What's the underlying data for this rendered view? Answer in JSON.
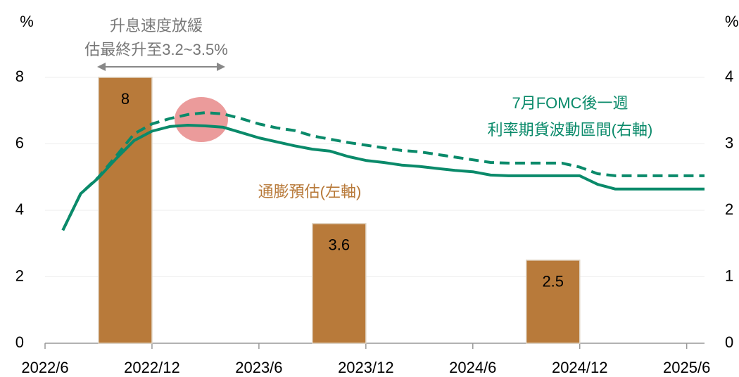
{
  "chart_data": {
    "type": "bar_line",
    "y_label": "%",
    "y2_label": "%",
    "xlim": [
      "2022/6",
      "2025/7"
    ],
    "xticks": [
      "2022/6",
      "2022/12",
      "2023/6",
      "2023/12",
      "2024/6",
      "2024/12",
      "2025/6"
    ],
    "ylim": [
      0,
      8
    ],
    "yticks": [
      0,
      2,
      4,
      6,
      8
    ],
    "y2lim": [
      0,
      4
    ],
    "y2ticks": [
      0,
      1,
      2,
      3,
      4
    ],
    "grid": true,
    "bars": {
      "name": "通膨預估(左軸)",
      "color": "#b87a3a",
      "x": [
        "2022/9",
        "2023/9",
        "2024/9"
      ],
      "values": [
        8,
        3.6,
        2.5
      ]
    },
    "x": [
      "2022/7",
      "2022/8",
      "2022/9",
      "2022/10",
      "2022/11",
      "2022/12",
      "2023/1",
      "2023/2",
      "2023/3",
      "2023/4",
      "2023/5",
      "2023/6",
      "2023/7",
      "2023/8",
      "2023/9",
      "2023/10",
      "2023/11",
      "2023/12",
      "2024/1",
      "2024/2",
      "2024/3",
      "2024/4",
      "2024/5",
      "2024/6",
      "2024/7",
      "2024/8",
      "2024/9",
      "2024/10",
      "2024/11",
      "2024/12",
      "2025/1",
      "2025/2",
      "2025/3",
      "2025/4",
      "2025/5",
      "2025/6",
      "2025/7"
    ],
    "series": [
      {
        "color": "#0a8a6a",
        "axis": "y2",
        "dashed": false,
        "values": [
          1.7,
          2.25,
          2.49,
          2.78,
          3.05,
          3.19,
          3.26,
          3.28,
          3.27,
          3.25,
          3.17,
          3.09,
          3.03,
          2.97,
          2.92,
          2.89,
          2.81,
          2.75,
          2.72,
          2.68,
          2.66,
          2.63,
          2.6,
          2.58,
          2.53,
          2.52,
          2.52,
          2.52,
          2.52,
          2.52,
          2.39,
          2.32,
          2.32,
          2.32,
          2.32,
          2.32,
          2.32
        ]
      },
      {
        "color": "#0a8a6a",
        "axis": "y2",
        "dashed": true,
        "values": [
          1.7,
          2.25,
          2.5,
          2.82,
          3.15,
          3.3,
          3.38,
          3.44,
          3.47,
          3.45,
          3.38,
          3.3,
          3.24,
          3.2,
          3.12,
          3.07,
          3.02,
          2.98,
          2.94,
          2.9,
          2.88,
          2.84,
          2.8,
          2.76,
          2.72,
          2.71,
          2.71,
          2.71,
          2.71,
          2.65,
          2.55,
          2.52,
          2.52,
          2.52,
          2.52,
          2.52,
          2.52
        ]
      }
    ],
    "line_label": [
      "7月FOMC後一週",
      "利率期貨波動區間(右軸)"
    ],
    "annotation": [
      "升息速度放緩",
      "估最終升至3.2~3.5%"
    ]
  }
}
